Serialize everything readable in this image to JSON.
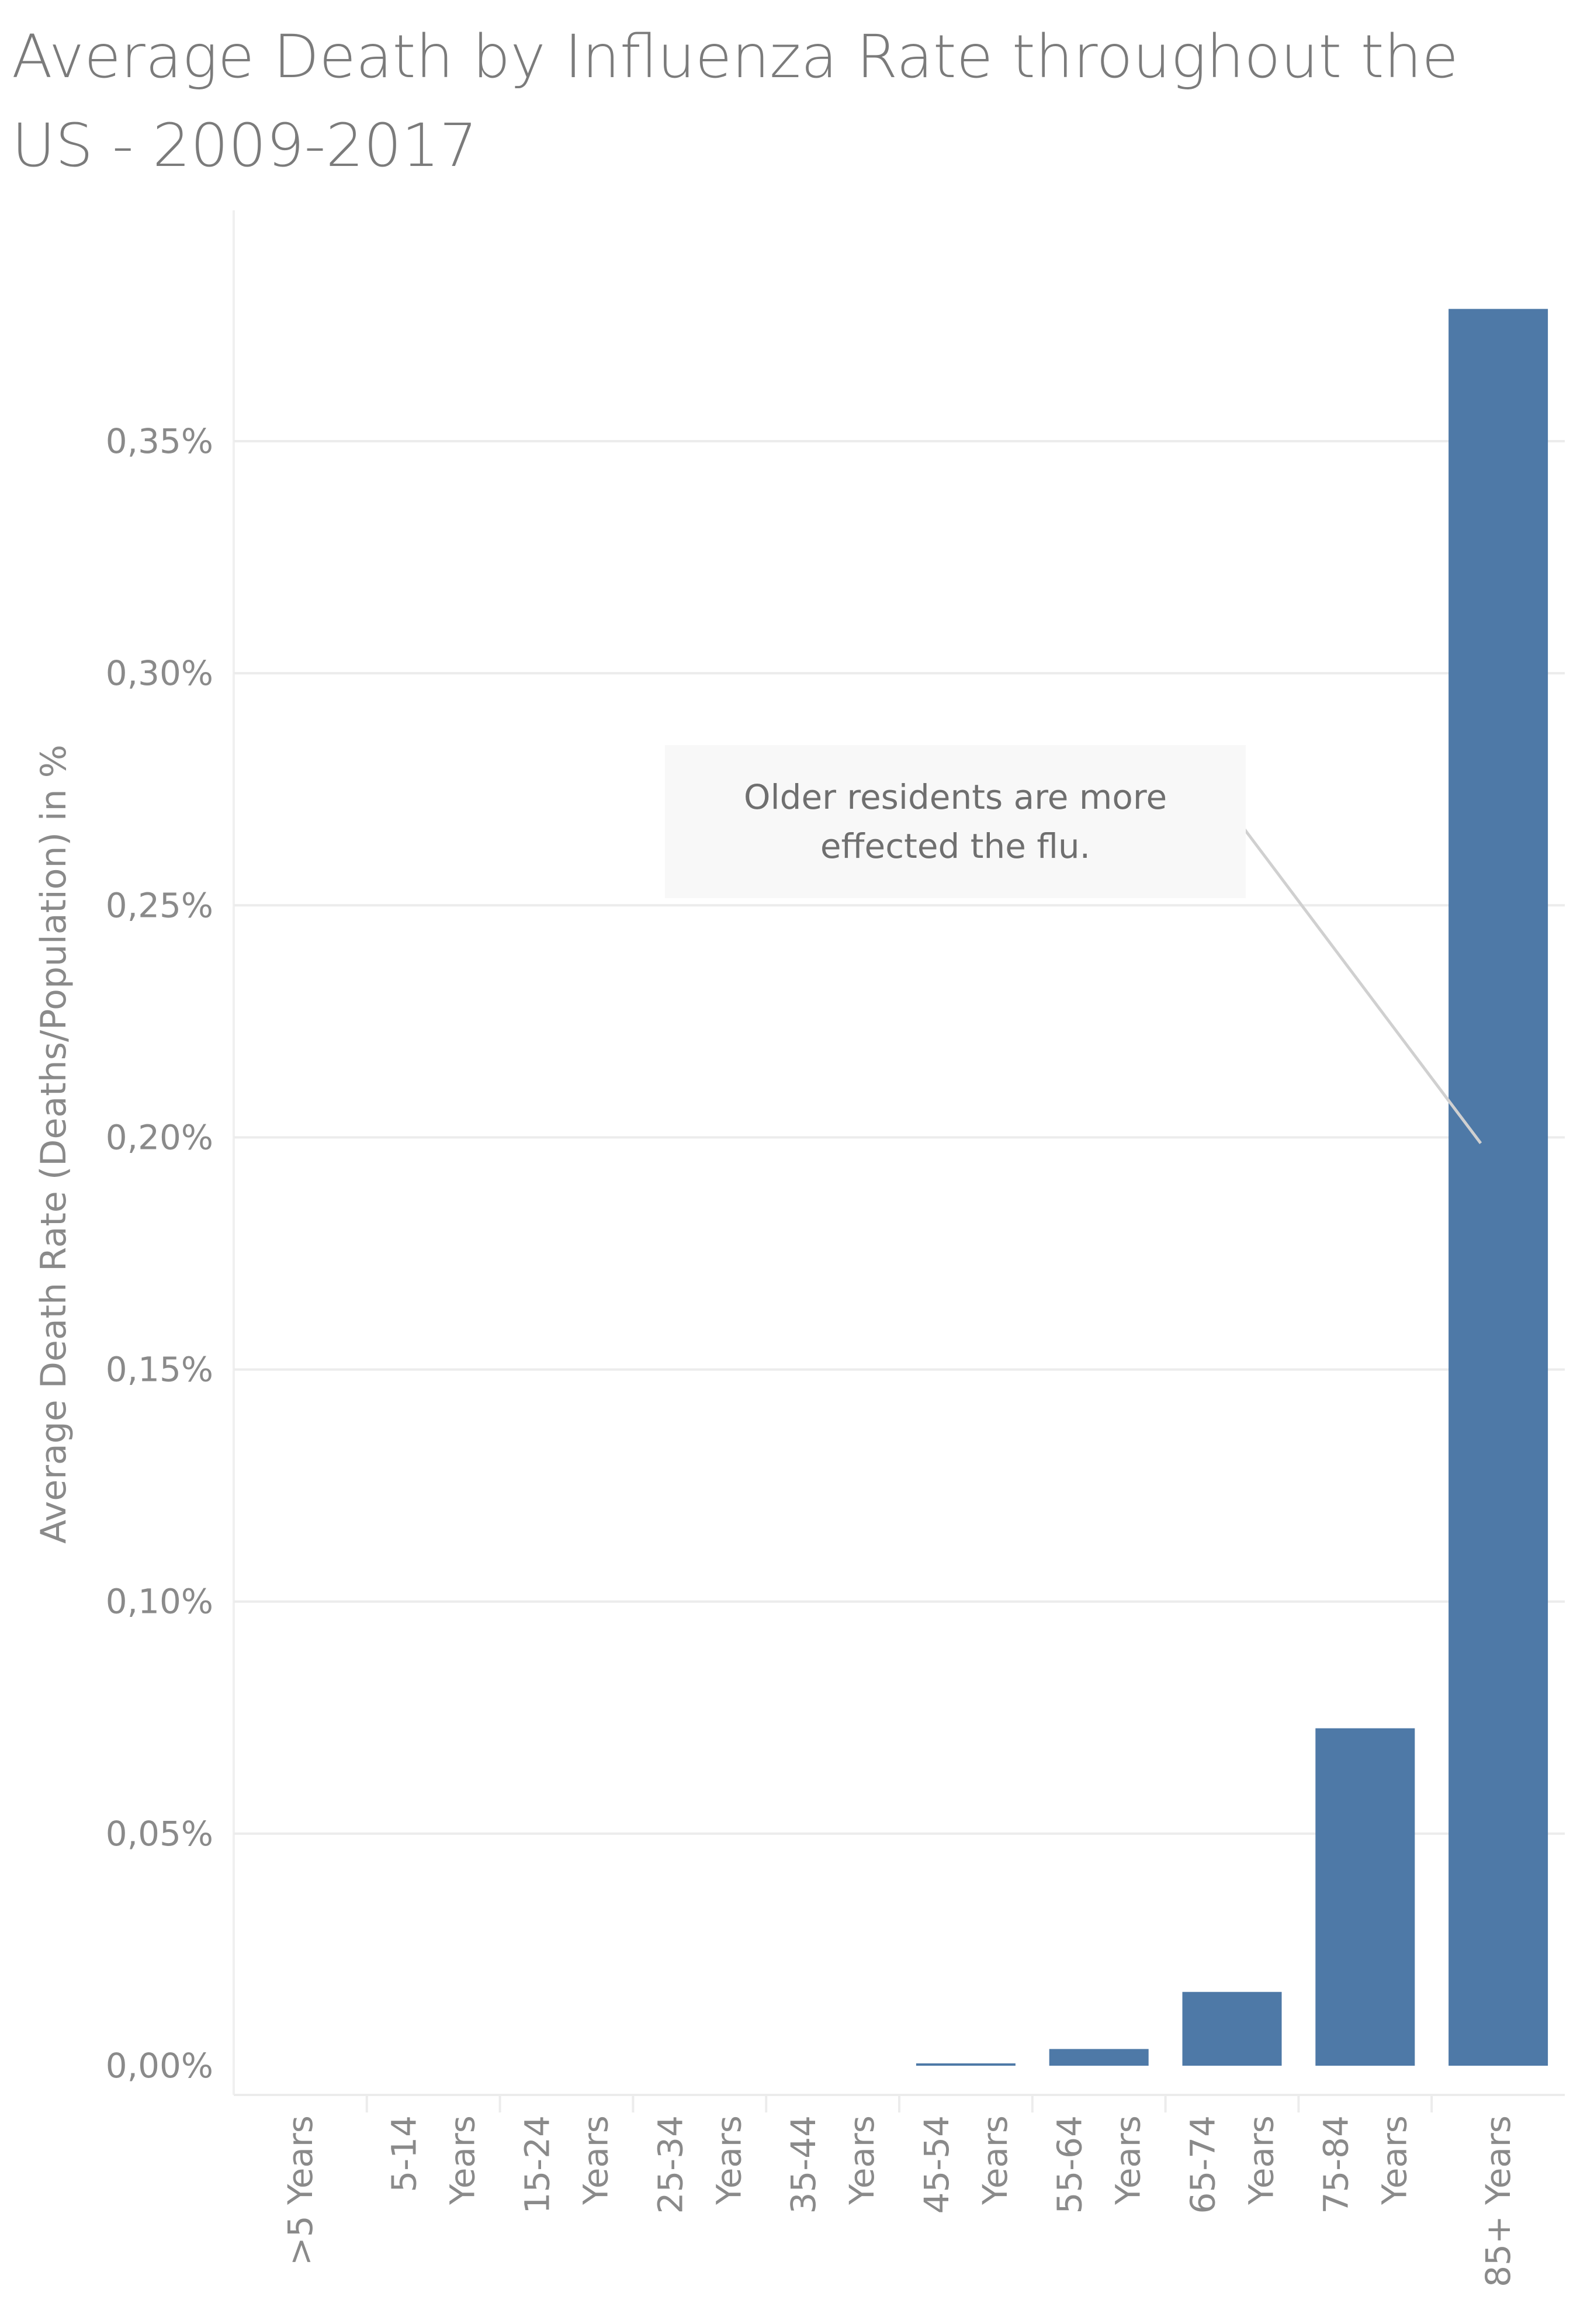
{
  "chart_data": {
    "type": "bar",
    "title": "Average Death by Influenza Rate throughout the US - 2009-2017",
    "ylabel": "Average Death Rate (Deaths/Population) in %",
    "xlabel": "",
    "categories": [
      ">5 Years",
      "5-14 Years",
      "15-24 Years",
      "25-34 Years",
      "35-44 Years",
      "45-54 Years",
      "55-64 Years",
      "65-74 Years",
      "75-84 Years",
      "85+ Years"
    ],
    "category_lines": [
      [
        ">5 Years"
      ],
      [
        "5-14",
        "Years"
      ],
      [
        "15-24",
        "Years"
      ],
      [
        "25-34",
        "Years"
      ],
      [
        "35-44",
        "Years"
      ],
      [
        "45-54",
        "Years"
      ],
      [
        "55-64",
        "Years"
      ],
      [
        "65-74",
        "Years"
      ],
      [
        "75-84",
        "Years"
      ],
      [
        "85+ Years"
      ]
    ],
    "values": [
      0.0,
      0.0,
      0.0,
      0.0,
      0.0,
      0.0003,
      0.0036,
      0.0159,
      0.0727,
      0.3785
    ],
    "ylim": [
      -0.006,
      0.395
    ],
    "yticks": [
      0.0,
      0.05,
      0.1,
      0.15,
      0.2,
      0.25,
      0.3,
      0.35
    ],
    "ytick_labels": [
      "0,00%",
      "0,05%",
      "0,10%",
      "0,15%",
      "0,20%",
      "0,25%",
      "0,30%",
      "0,35%"
    ],
    "grid": true,
    "colors": {
      "bar": "#4e79a7",
      "grid": "#ececec",
      "axis_text": "#8a8a8a",
      "title": "#7b7b7b"
    },
    "annotation": {
      "text": "Older residents are more effected the flu.",
      "points_to": "85+ Years",
      "pointer_value": 0.2
    }
  }
}
